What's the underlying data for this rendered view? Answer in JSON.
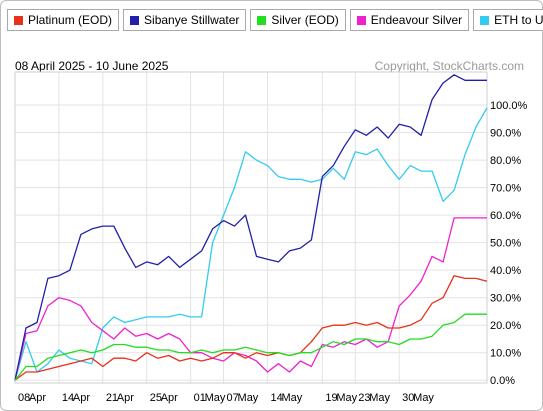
{
  "legend": {
    "items": [
      {
        "label": "Platinum (EOD)",
        "color": "#e8311a"
      },
      {
        "label": "Sibanye Stillwater",
        "color": "#2020a8"
      },
      {
        "label": "Silver (EOD)",
        "color": "#22dd22"
      },
      {
        "label": "Endeavour Silver",
        "color": "#ee22cc"
      },
      {
        "label": "ETH to USD",
        "color": "#33ccee"
      }
    ]
  },
  "header": {
    "date_range": "08 April 2025 - 10 June 2025",
    "copyright": "Copyright, StockCharts.com"
  },
  "chart_data": {
    "type": "line",
    "x": [
      "08 Apr",
      "09 Apr",
      "10 Apr",
      "11 Apr",
      "14 Apr",
      "15 Apr",
      "16 Apr",
      "17 Apr",
      "21 Apr",
      "22 Apr",
      "23 Apr",
      "24 Apr",
      "25 Apr",
      "28 Apr",
      "29 Apr",
      "30 Apr",
      "01 May",
      "02 May",
      "05 May",
      "06 May",
      "07 May",
      "08 May",
      "09 May",
      "12 May",
      "13 May",
      "14 May",
      "15 May",
      "16 May",
      "19 May",
      "20 May",
      "21 May",
      "22 May",
      "23 May",
      "27 May",
      "28 May",
      "29 May",
      "30 May",
      "02 Jun",
      "03 Jun",
      "04 Jun",
      "05 Jun",
      "06 Jun",
      "09 Jun",
      "10 Jun"
    ],
    "x_tick_labels": [
      {
        "at": 0,
        "label": "08"
      },
      {
        "at": 1,
        "label": "Apr"
      },
      {
        "at": 4,
        "label": "14"
      },
      {
        "at": 5,
        "label": "Apr"
      },
      {
        "at": 8,
        "label": "21"
      },
      {
        "at": 9,
        "label": "Apr"
      },
      {
        "at": 12,
        "label": "25"
      },
      {
        "at": 13,
        "label": "Apr"
      },
      {
        "at": 16,
        "label": "01"
      },
      {
        "at": 17,
        "label": "May"
      },
      {
        "at": 19,
        "label": "07"
      },
      {
        "at": 20,
        "label": "May"
      },
      {
        "at": 23,
        "label": "14"
      },
      {
        "at": 24,
        "label": "May"
      },
      {
        "at": 28,
        "label": "19"
      },
      {
        "at": 29,
        "label": "May"
      },
      {
        "at": 31,
        "label": "23"
      },
      {
        "at": 32,
        "label": "May"
      },
      {
        "at": 35,
        "label": "30"
      },
      {
        "at": 36,
        "label": "May"
      }
    ],
    "y_ticks": [
      0,
      10,
      20,
      30,
      40,
      50,
      60,
      70,
      80,
      90,
      100
    ],
    "y_tick_labels": [
      "0.0%",
      "10.0%",
      "20.0%",
      "30.0%",
      "40.0%",
      "50.0%",
      "60.0%",
      "70.0%",
      "80.0%",
      "90.0%",
      "100.0%"
    ],
    "ylim": [
      -1,
      112
    ],
    "grid": true,
    "legend_position": "top",
    "series": [
      {
        "name": "ETH to USD",
        "color": "#33ccee",
        "values": [
          0,
          14,
          3,
          6,
          11,
          8,
          7,
          6,
          19,
          23,
          21,
          22,
          23,
          23,
          23,
          24,
          23,
          23,
          50,
          60,
          70,
          83,
          80,
          78,
          74,
          73,
          73,
          72,
          73,
          77,
          73,
          83,
          82,
          84,
          78,
          73,
          78,
          76,
          76,
          65,
          69,
          82,
          92,
          99
        ]
      },
      {
        "name": "Endeavour Silver",
        "color": "#ee22cc",
        "values": [
          0,
          17,
          18,
          27,
          30,
          29,
          27,
          21,
          18,
          15,
          19,
          16,
          17,
          15,
          17,
          15,
          10,
          10,
          8,
          7,
          10,
          9,
          7,
          3,
          6,
          3,
          7,
          5,
          13,
          12,
          14,
          13,
          15,
          12,
          14,
          27,
          31,
          36,
          45,
          43,
          59,
          59,
          59,
          59
        ]
      },
      {
        "name": "Sibanye Stillwater",
        "color": "#2020a8",
        "values": [
          0,
          19,
          21,
          37,
          38,
          40,
          53,
          55,
          56,
          56,
          48,
          41,
          43,
          42,
          45,
          41,
          44,
          47,
          55,
          58,
          56,
          60,
          45,
          44,
          43,
          47,
          48,
          51,
          74,
          78,
          85,
          91,
          89,
          92,
          88,
          93,
          92,
          89,
          102,
          108,
          111,
          109,
          109,
          109
        ]
      },
      {
        "name": "Platinum (EOD)",
        "color": "#e8311a",
        "values": [
          0,
          3,
          3,
          4,
          5,
          6,
          7,
          8,
          5,
          8,
          8,
          7,
          10,
          8,
          9,
          7,
          8,
          7,
          8,
          10,
          10,
          8,
          10,
          9,
          10,
          9,
          10,
          14,
          19,
          20,
          20,
          21,
          20,
          21,
          19,
          19,
          20,
          22,
          28,
          30,
          38,
          37,
          37,
          36
        ]
      },
      {
        "name": "Silver (EOD)",
        "color": "#22dd22",
        "values": [
          0,
          5,
          5,
          8,
          9,
          10,
          11,
          10,
          11,
          13,
          13,
          12,
          12,
          11,
          11,
          10,
          10,
          11,
          10,
          11,
          11,
          12,
          11,
          10,
          10,
          9,
          10,
          10,
          12,
          14,
          13,
          15,
          15,
          14,
          14,
          13,
          15,
          15,
          16,
          20,
          21,
          24,
          24,
          24
        ]
      }
    ]
  }
}
